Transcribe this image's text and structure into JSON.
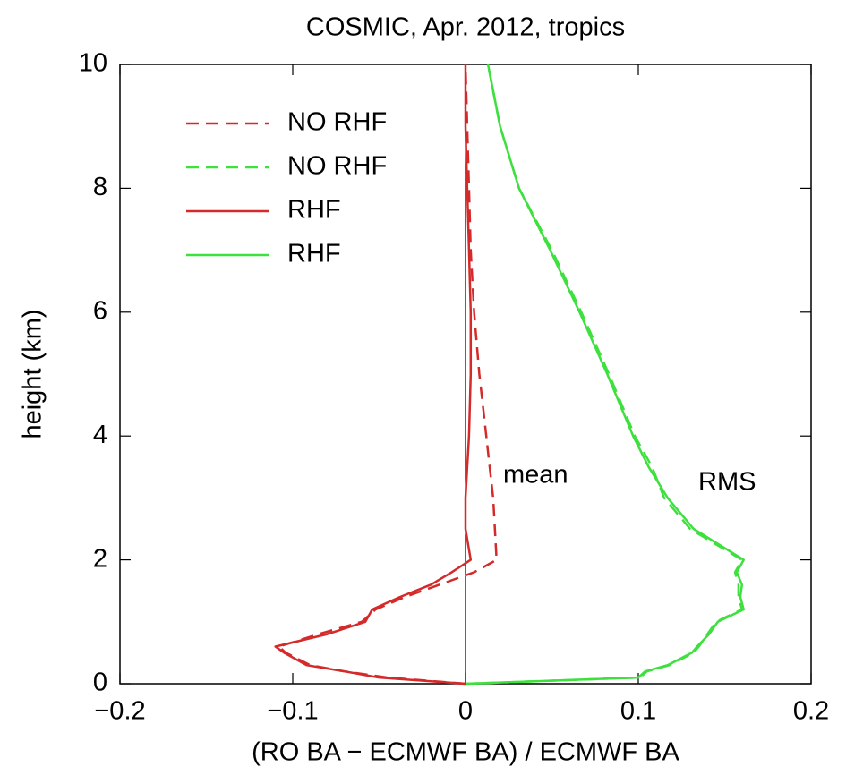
{
  "chart_data": {
    "type": "line",
    "title": "COSMIC, Apr. 2012, tropics",
    "xlabel": "(RO BA − ECMWF BA) / ECMWF BA",
    "ylabel": "height (km)",
    "xlim": [
      -0.2,
      0.2
    ],
    "ylim": [
      0,
      10
    ],
    "xticks": [
      {
        "value": -0.2,
        "label": "−0.2"
      },
      {
        "value": -0.1,
        "label": "−0.1"
      },
      0,
      0.1,
      0.2
    ],
    "yticks": [
      0,
      2,
      4,
      6,
      8,
      10
    ],
    "legend": "upper left",
    "annotations": [
      "mean",
      "RMS"
    ],
    "y": [
      0,
      0.1,
      0.2,
      0.3,
      0.5,
      0.6,
      0.8,
      1,
      1.2,
      1.4,
      1.6,
      1.8,
      2,
      2.5,
      3,
      3.5,
      4,
      5,
      6,
      7,
      8,
      9,
      10
    ],
    "series": [
      {
        "name": "NO RHF",
        "color": "#d42a2a",
        "dashed": true,
        "values": [
          0,
          -0.045,
          -0.07,
          -0.09,
          -0.104,
          -0.108,
          -0.085,
          -0.06,
          -0.052,
          -0.035,
          -0.015,
          0.005,
          0.018,
          0.017,
          0.016,
          0.014,
          0.012,
          0.008,
          0.005,
          0.003,
          0.002,
          0.001,
          0
        ]
      },
      {
        "name": "NO RHF",
        "color": "#3ee03e",
        "dashed": true,
        "values": [
          0,
          0.101,
          0.105,
          0.118,
          0.132,
          0.135,
          0.14,
          0.145,
          0.16,
          0.158,
          0.158,
          0.156,
          0.16,
          0.13,
          0.115,
          0.108,
          0.098,
          0.083,
          0.067,
          0.05,
          0.031,
          0.02,
          0.013
        ]
      },
      {
        "name": "RHF",
        "color": "#d42a2a",
        "dashed": false,
        "values": [
          0,
          -0.05,
          -0.07,
          -0.092,
          -0.105,
          -0.11,
          -0.08,
          -0.058,
          -0.054,
          -0.038,
          -0.02,
          -0.008,
          0.003,
          0,
          0,
          0.001,
          0.002,
          0.003,
          0.003,
          0.002,
          0.001,
          0,
          0
        ]
      },
      {
        "name": "RHF",
        "color": "#3ee03e",
        "dashed": false,
        "values": [
          0,
          0.1,
          0.104,
          0.117,
          0.131,
          0.134,
          0.141,
          0.146,
          0.161,
          0.159,
          0.16,
          0.157,
          0.161,
          0.132,
          0.117,
          0.106,
          0.097,
          0.082,
          0.066,
          0.049,
          0.031,
          0.02,
          0.013
        ]
      }
    ]
  }
}
